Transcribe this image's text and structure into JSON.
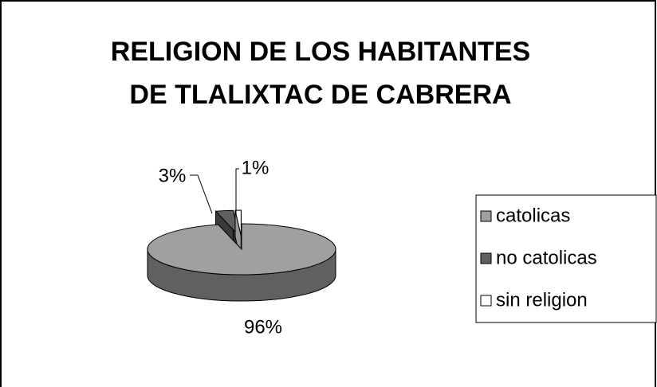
{
  "chart_data": {
    "type": "pie3d",
    "title": "RELIGION DE LOS HABITANTES DE TLALIXTAC DE CABRERA",
    "categories": [
      "catolicas",
      "no catolicas",
      "sin religion"
    ],
    "values": [
      96,
      3,
      1
    ],
    "value_labels": [
      "96%",
      "3%",
      "1%"
    ],
    "colors": [
      "#a0a0a0",
      "#606060",
      "#ffffff"
    ],
    "legend": "right"
  }
}
